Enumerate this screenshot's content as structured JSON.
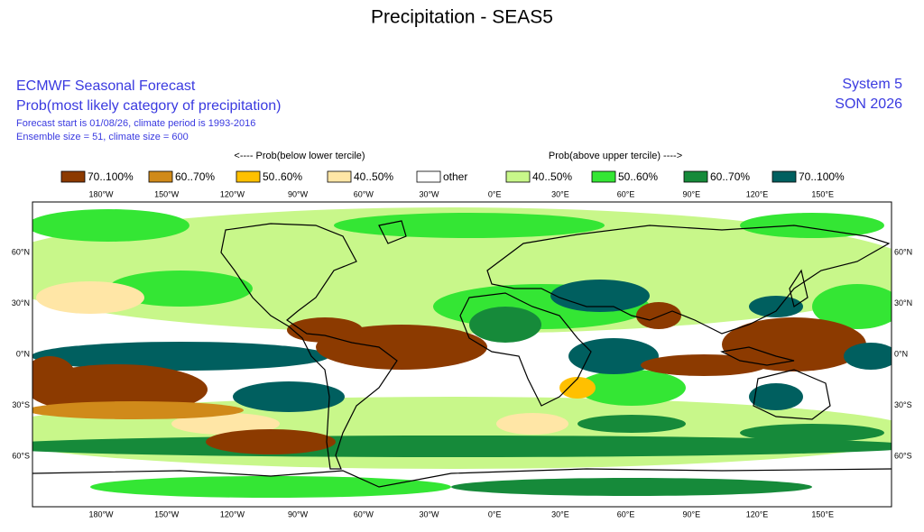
{
  "title": "Precipitation - SEAS5",
  "header": {
    "left": [
      "ECMWF Seasonal Forecast",
      "Prob(most likely category of precipitation)",
      "Forecast start is 01/08/26, climate period is 1993-2016",
      "Ensemble size = 51, climate size = 600"
    ],
    "right": [
      "System 5",
      "SON 2026"
    ]
  },
  "legend": {
    "below_label": "<---- Prob(below lower tercile)",
    "above_label": "Prob(above upper tercile) ---->",
    "items": [
      {
        "label": "70..100%",
        "color": "#8c3a00"
      },
      {
        "label": "60..70%",
        "color": "#d08a1a"
      },
      {
        "label": "50..60%",
        "color": "#ffc000"
      },
      {
        "label": "40..50%",
        "color": "#ffe6a6"
      },
      {
        "label": "other",
        "color": "#ffffff"
      },
      {
        "label": "40..50%",
        "color": "#c8f78a"
      },
      {
        "label": "50..60%",
        "color": "#34e634"
      },
      {
        "label": "60..70%",
        "color": "#168a3a"
      },
      {
        "label": "70..100%",
        "color": "#005f5f"
      }
    ]
  },
  "map": {
    "lon_labels": [
      "180°W",
      "150°W",
      "120°W",
      "90°W",
      "60°W",
      "30°W",
      "0°E",
      "30°E",
      "60°E",
      "90°E",
      "120°E",
      "150°E"
    ],
    "lat_labels": [
      "60°N",
      "30°N",
      "0°N",
      "30°S",
      "60°S"
    ]
  }
}
